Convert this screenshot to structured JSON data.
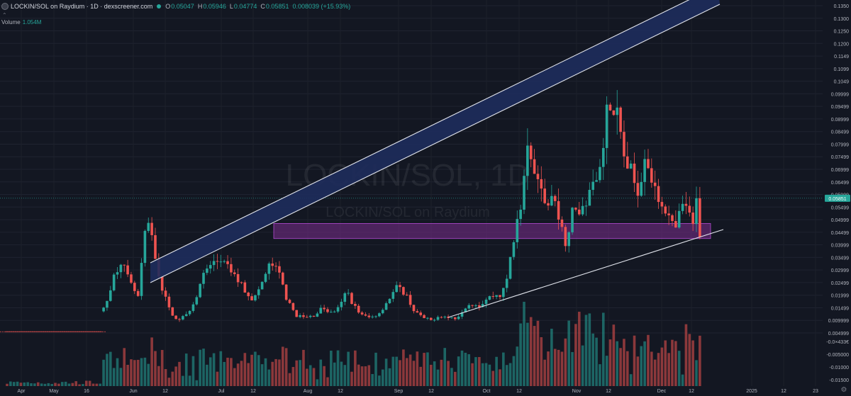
{
  "header": {
    "title": "LOCKIN/SOL on Raydium · 1D · dexscreener.com",
    "open_label": "O",
    "open": "0.05047",
    "high_label": "H",
    "high": "0.05946",
    "low_label": "L",
    "low": "0.04774",
    "close_label": "C",
    "close": "0.05851",
    "change": "0.008039 (+15.93%)"
  },
  "volume": {
    "label": "Volume",
    "value": "1.054M"
  },
  "watermark": {
    "line1": "LOCKIN/SOL, 1D",
    "line2": "LOCKIN/SOL on Raydium"
  },
  "colors": {
    "up": "#26a69a",
    "down": "#ef5350",
    "channel": "#1e2c5c",
    "zone": "#7b2d8e",
    "background": "#131722"
  },
  "icons": {
    "collapse": "chevron-up-icon",
    "settings": "gear-icon"
  },
  "chart_data": {
    "type": "candlestick",
    "y_ticks": [
      "0.1350",
      "0.1300",
      "0.1250",
      "0.1200",
      "0.1149",
      "0.1099",
      "0.1049",
      "0.09999",
      "0.09499",
      "0.08999",
      "0.08499",
      "0.07999",
      "0.07499",
      "0.06999",
      "0.06499",
      "0.05999",
      "0.05499",
      "0.04999",
      "0.04499",
      "0.03999",
      "0.03499",
      "0.02999",
      "0.02499",
      "0.01999",
      "0.01499",
      "0.009999",
      "0.004999"
    ],
    "volume_ticks": [
      "-0.0×433€",
      "-0.005000",
      "-0.01000",
      "-0.01500"
    ],
    "x_ticks": [
      "Apr",
      "May",
      "16",
      "Jun",
      "12",
      "Jul",
      "12",
      "Aug",
      "12",
      "Sep",
      "12",
      "Oct",
      "12",
      "Nov",
      "12",
      "Dec",
      "12",
      "2025",
      "12",
      "23"
    ],
    "last_price_label": "0.05851",
    "last_price": 0.05851,
    "ylim": [
      0.002,
      0.137
    ],
    "annotations": {
      "upper_channel": "rising channel band",
      "lower_trendline": "rising support line",
      "support_zone": [
        0.0425,
        0.0485
      ]
    }
  }
}
